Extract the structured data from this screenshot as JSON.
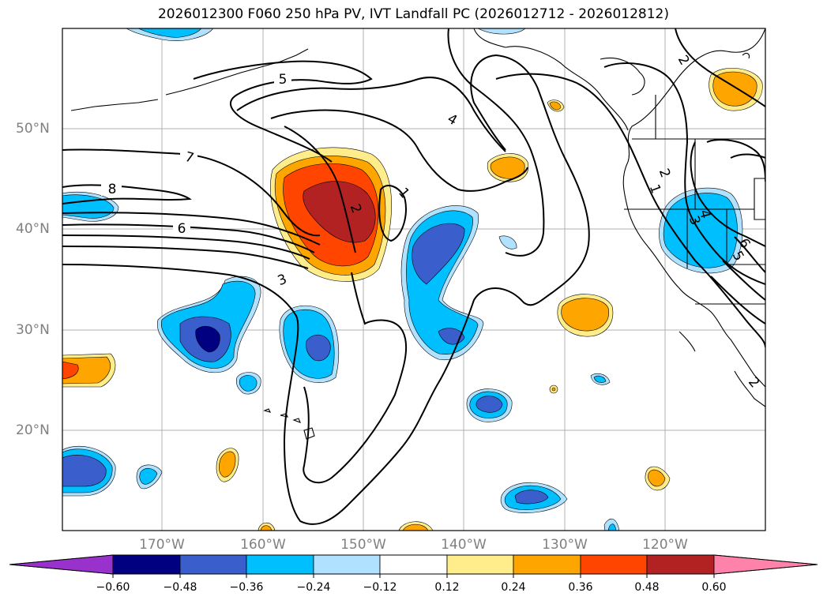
{
  "title": "2026012300 F060 250 hPa PV, IVT Landfall PC (2026012712 - 2026012812)",
  "lat_labels": [
    "50°N",
    "40°N",
    "30°N",
    "20°N"
  ],
  "lon_labels": [
    "170°W",
    "160°W",
    "150°W",
    "140°W",
    "130°W",
    "120°W"
  ],
  "contour_labels": [
    "8",
    "7",
    "6",
    "5",
    "4",
    "3",
    "2",
    "2",
    "1",
    "1",
    "2",
    "3",
    "4",
    "5",
    "6",
    "2"
  ],
  "colorbar": {
    "ticks": [
      "−0.60",
      "−0.48",
      "−0.36",
      "−0.24",
      "−0.12",
      "0.12",
      "0.24",
      "0.36",
      "0.48",
      "0.60"
    ],
    "colors": [
      "#9932cc",
      "#000080",
      "#3a5fcd",
      "#00bfff",
      "#b0e2ff",
      "#ffffff",
      "#ffec8b",
      "#ffa500",
      "#ff4500",
      "#b22222",
      "#ff82ab"
    ]
  }
}
